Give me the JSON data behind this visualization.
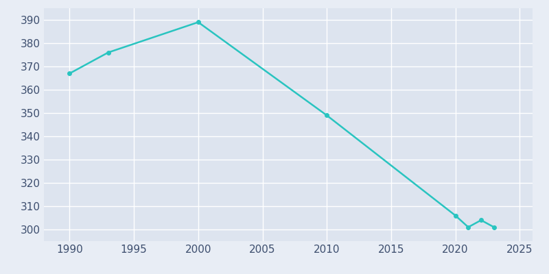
{
  "years": [
    1990,
    1993,
    2000,
    2010,
    2020,
    2021,
    2022,
    2023
  ],
  "population": [
    367,
    376,
    389,
    349,
    306,
    301,
    304,
    301
  ],
  "line_color": "#29c4c0",
  "marker_color": "#29c4c0",
  "plot_bg_color": "#dde4ef",
  "fig_bg_color": "#e8edf5",
  "grid_color": "#ffffff",
  "xlabel": "",
  "ylabel": "",
  "xlim": [
    1988,
    2026
  ],
  "ylim": [
    295,
    395
  ],
  "yticks": [
    300,
    310,
    320,
    330,
    340,
    350,
    360,
    370,
    380,
    390
  ],
  "xticks": [
    1990,
    1995,
    2000,
    2005,
    2010,
    2015,
    2020,
    2025
  ],
  "tick_color": "#3d4e6e",
  "tick_fontsize": 11
}
